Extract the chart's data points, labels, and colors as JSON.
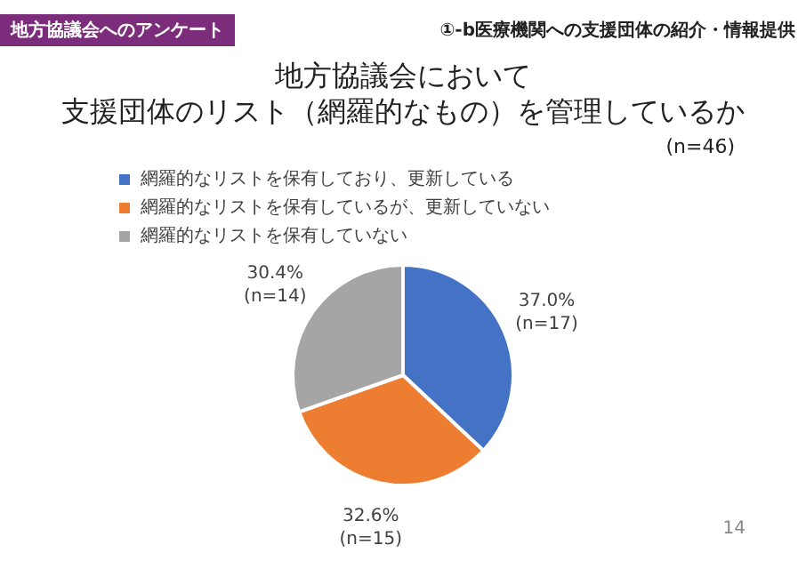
{
  "chart_data": {
    "type": "pie",
    "title": "地方協議会において",
    "subtitle": "支援団体のリスト（網羅的なもの）を管理しているか",
    "annotations": [
      "地方協議会へのアンケート",
      "①-b医療機関への支援団体の紹介・情報提供",
      "14",
      "(n=46)"
    ],
    "categories": [
      "網羅的なリストを保有しており、更新している",
      "網羅的なリストを保有しているが、更新していない",
      "網羅的なリストを保有していない"
    ],
    "values": [
      37.0,
      32.6,
      30.4
    ],
    "value_labels": [
      "37.0%\n(n=17)",
      "32.6%\n(n=15)",
      "30.4%\n(n=14)"
    ],
    "colors": [
      "#4472c4",
      "#ed7d31",
      "#a5a5a5"
    ],
    "legend": "top left"
  }
}
